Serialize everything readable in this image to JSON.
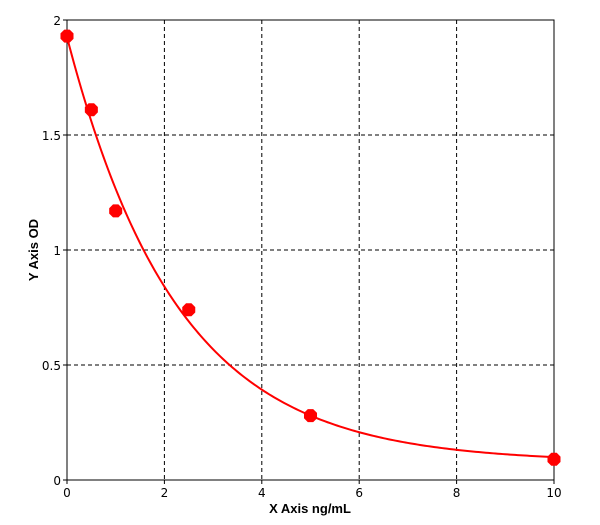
{
  "chart_data": {
    "type": "scatter",
    "title": "",
    "xlabel": "X Axis ng/mL",
    "ylabel": "Y Axis OD",
    "xlim": [
      0,
      10
    ],
    "ylim": [
      0,
      2
    ],
    "x_ticks": [
      "0",
      "2",
      "4",
      "6",
      "8",
      "10"
    ],
    "y_ticks": [
      "0",
      "0.5",
      "1",
      "1.5",
      "2"
    ],
    "grid": true,
    "series": [
      {
        "points": [
          {
            "x": 0,
            "y": 1.93
          },
          {
            "x": 0.5,
            "y": 1.61
          },
          {
            "x": 1,
            "y": 1.17
          },
          {
            "x": 2.5,
            "y": 0.74
          },
          {
            "x": 5,
            "y": 0.28
          },
          {
            "x": 10,
            "y": 0.09
          }
        ],
        "fit": "exponential"
      }
    ],
    "colors": {
      "series": "#ff0000",
      "grid": "#000000",
      "axes": "#000000"
    }
  }
}
